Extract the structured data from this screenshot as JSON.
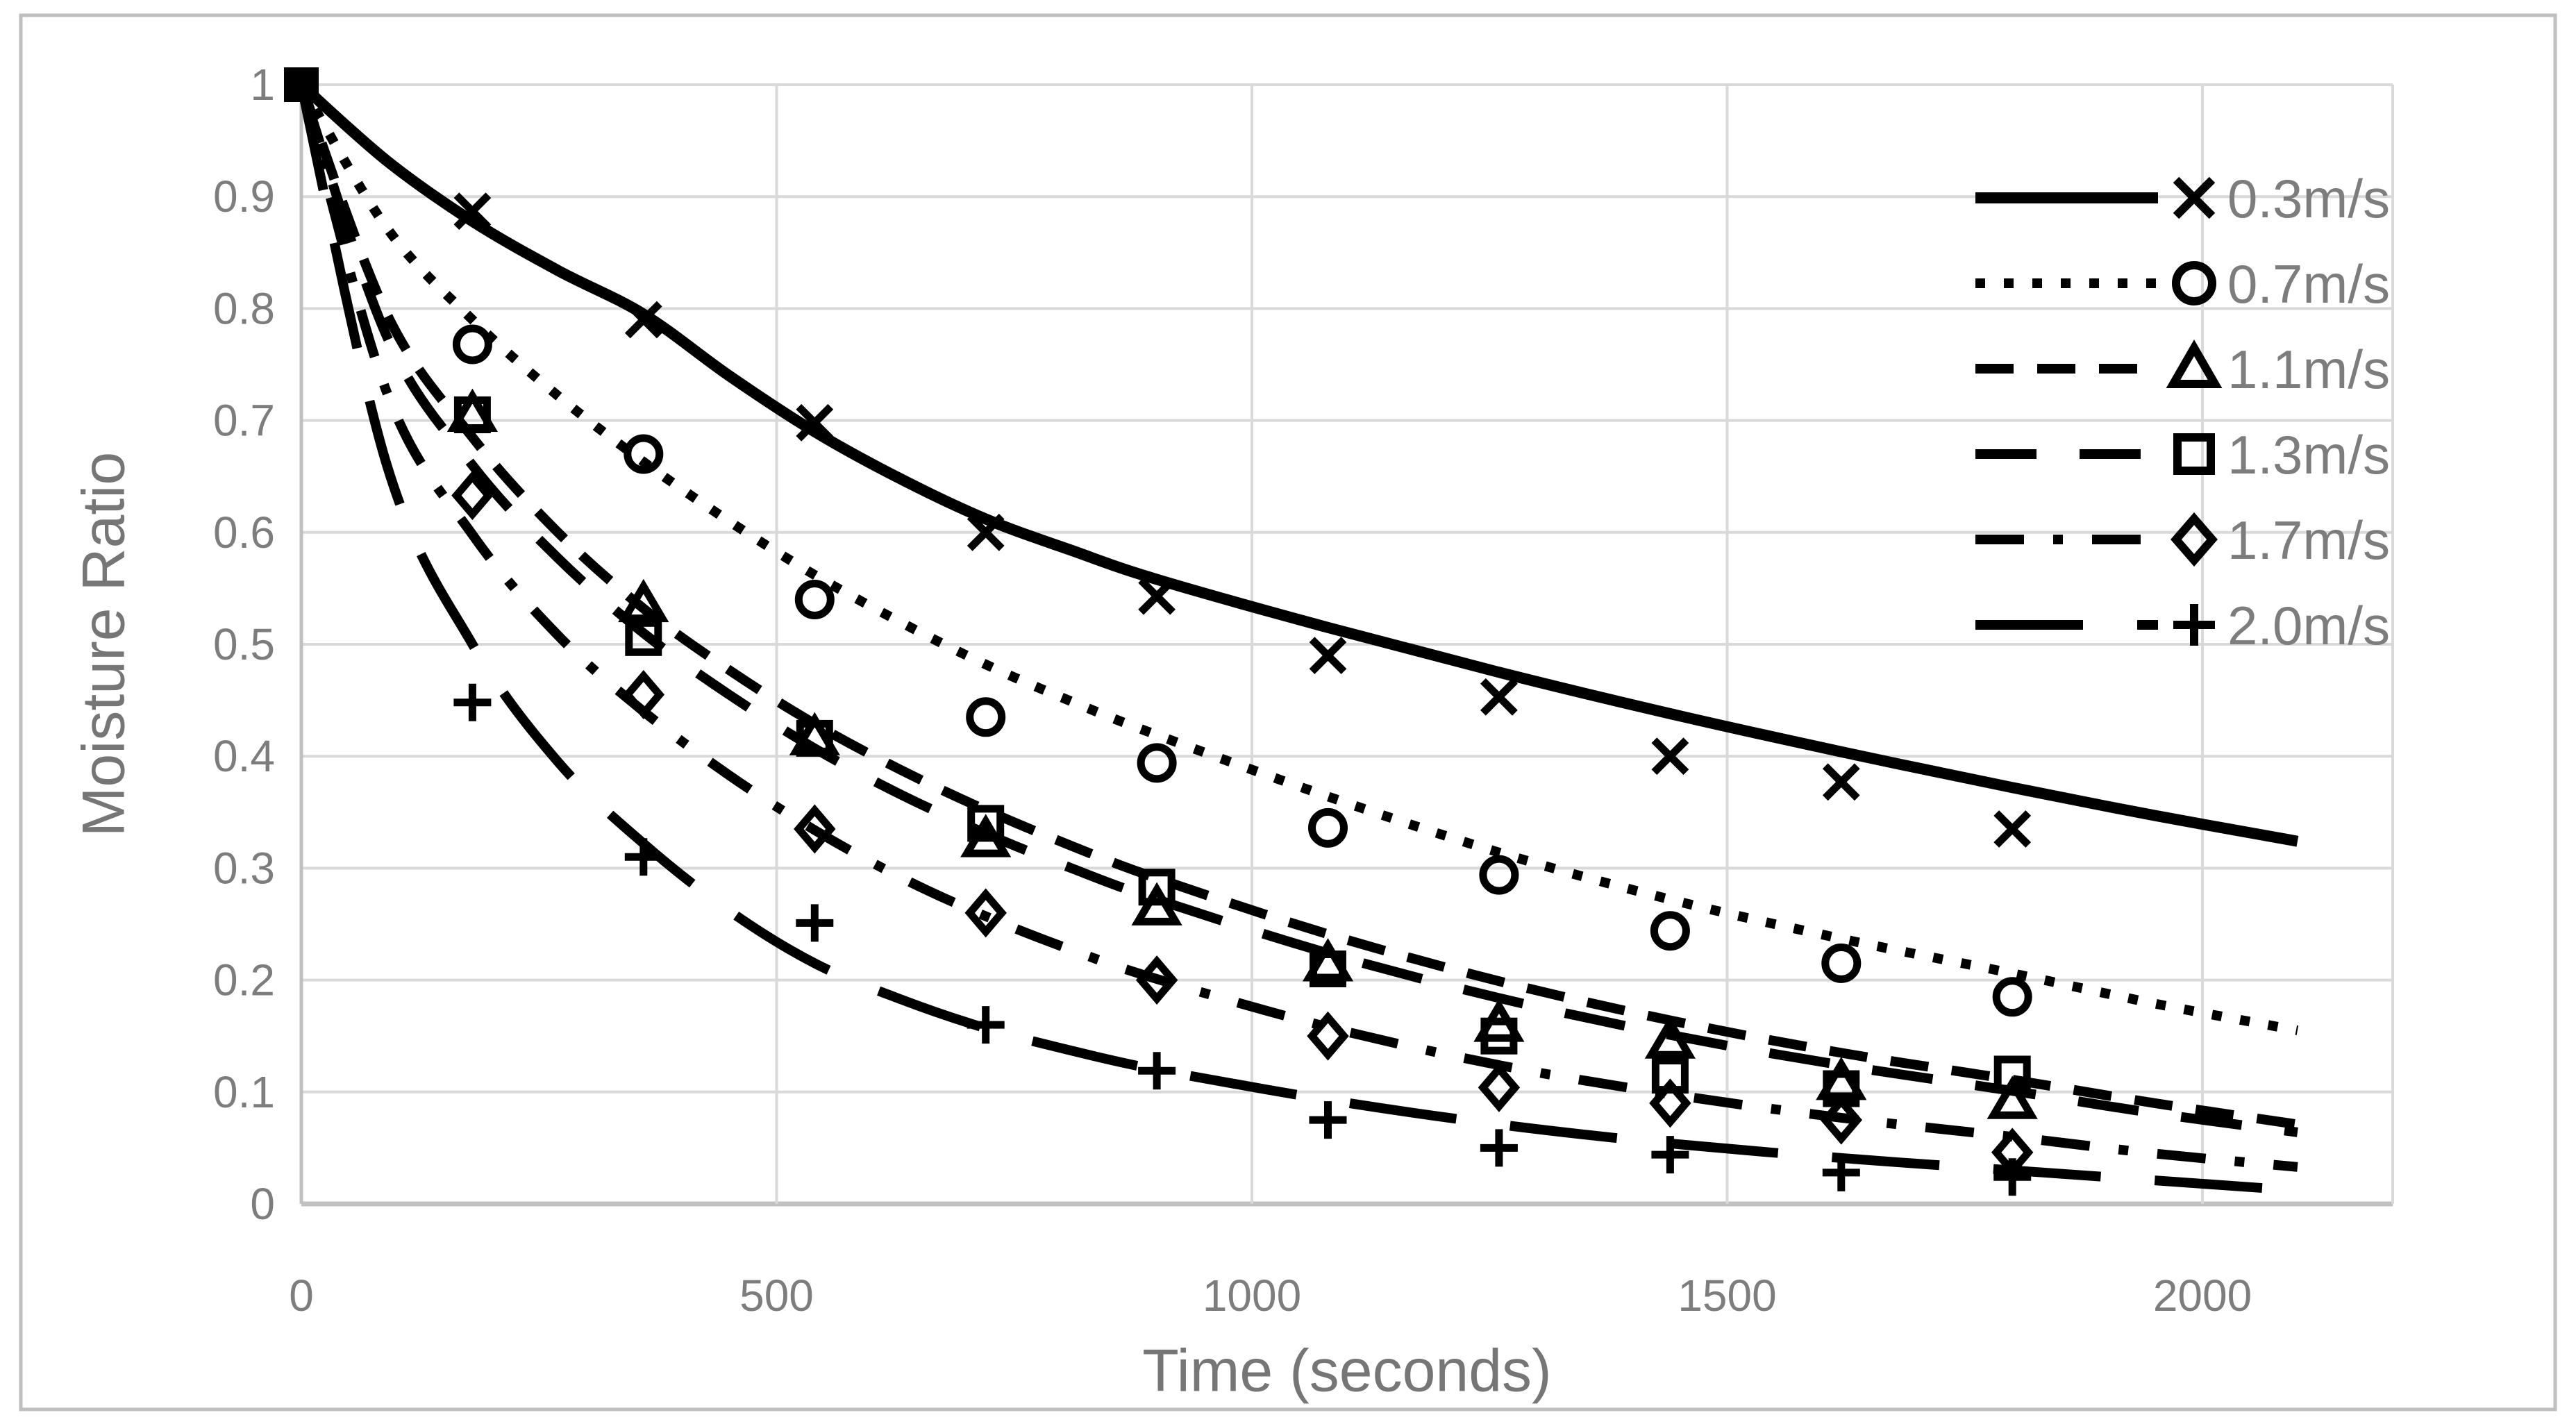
{
  "chart_data": {
    "type": "scatter",
    "title": "",
    "xlabel": "Time (seconds)",
    "ylabel": "Moisture Ratio",
    "xlim": [
      0,
      2200
    ],
    "ylim": [
      0,
      1
    ],
    "grid": true,
    "legend_position": "top-right-inside",
    "x_ticks": [
      {
        "value": 0,
        "label": "0"
      },
      {
        "value": 500,
        "label": "500"
      },
      {
        "value": 1000,
        "label": "1000"
      },
      {
        "value": 1500,
        "label": "1500"
      },
      {
        "value": 2000,
        "label": "2000"
      }
    ],
    "y_tick_labels": [
      "0",
      "0.1",
      "0.2",
      "0.3",
      "0.4",
      "0.5",
      "0.6",
      "0.7",
      "0.8",
      "0.9",
      "1"
    ],
    "origin_point": {
      "t": 0,
      "mr": 1.0,
      "marker": "filled-square",
      "note": "all series share the point (0, 1)"
    },
    "scatter_t": [
      180,
      360,
      540,
      720,
      900,
      1080,
      1260,
      1440,
      1620,
      1800
    ],
    "curve_t": [
      0,
      90,
      180,
      270,
      360,
      450,
      540,
      630,
      720,
      810,
      900,
      1080,
      1260,
      1440,
      1620,
      1800,
      1950,
      2100
    ],
    "series": [
      {
        "label": "0.3m/s",
        "marker": "x",
        "line_style": "solid",
        "scatter_mr": [
          0.887,
          0.79,
          0.698,
          0.6,
          0.543,
          0.49,
          0.453,
          0.4,
          0.377,
          0.335
        ],
        "curve_mr": [
          1.0,
          0.932,
          0.878,
          0.834,
          0.795,
          0.74,
          0.69,
          0.648,
          0.612,
          0.584,
          0.558,
          0.515,
          0.475,
          0.438,
          0.404,
          0.372,
          0.347,
          0.324
        ]
      },
      {
        "label": "0.7m/s",
        "marker": "circle",
        "line_style": "dotted",
        "scatter_mr": [
          0.768,
          0.67,
          0.54,
          0.435,
          0.394,
          0.336,
          0.294,
          0.244,
          0.215,
          0.185
        ],
        "curve_mr": [
          1.0,
          0.872,
          0.79,
          0.722,
          0.663,
          0.61,
          0.562,
          0.52,
          0.482,
          0.449,
          0.419,
          0.364,
          0.314,
          0.272,
          0.237,
          0.206,
          0.179,
          0.155
        ]
      },
      {
        "label": "1.1m/s",
        "marker": "triangle",
        "line_style": "short-dash",
        "scatter_mr": [
          0.705,
          0.535,
          0.416,
          0.325,
          0.264,
          0.214,
          0.16,
          0.145,
          0.108,
          0.091
        ],
        "curve_mr": [
          1.0,
          0.795,
          0.685,
          0.6,
          0.532,
          0.477,
          0.429,
          0.388,
          0.352,
          0.32,
          0.291,
          0.241,
          0.199,
          0.164,
          0.135,
          0.111,
          0.09,
          0.071
        ]
      },
      {
        "label": "1.3m/s",
        "marker": "square",
        "line_style": "medium-dash",
        "scatter_mr": [
          0.705,
          0.506,
          0.416,
          0.34,
          0.283,
          0.21,
          0.15,
          0.115,
          0.103,
          0.116
        ],
        "curve_mr": [
          1.0,
          0.775,
          0.66,
          0.577,
          0.51,
          0.455,
          0.407,
          0.366,
          0.331,
          0.3,
          0.272,
          0.224,
          0.184,
          0.151,
          0.124,
          0.101,
          0.081,
          0.064
        ]
      },
      {
        "label": "1.7m/s",
        "marker": "diamond",
        "line_style": "dash-dot",
        "scatter_mr": [
          0.633,
          0.455,
          0.335,
          0.26,
          0.2,
          0.15,
          0.104,
          0.09,
          0.075,
          0.046
        ],
        "curve_mr": [
          1.0,
          0.725,
          0.598,
          0.508,
          0.44,
          0.383,
          0.334,
          0.292,
          0.257,
          0.227,
          0.201,
          0.158,
          0.124,
          0.098,
          0.077,
          0.06,
          0.045,
          0.033
        ]
      },
      {
        "label": "2.0m/s",
        "marker": "plus",
        "line_style": "long-dash",
        "scatter_mr": [
          0.448,
          0.31,
          0.251,
          0.16,
          0.119,
          0.075,
          0.05,
          0.044,
          0.028,
          0.024
        ],
        "curve_mr": [
          1.0,
          0.66,
          0.5,
          0.395,
          0.322,
          0.262,
          0.215,
          0.183,
          0.157,
          0.137,
          0.12,
          0.093,
          0.071,
          0.054,
          0.041,
          0.03,
          0.021,
          0.012
        ]
      }
    ],
    "colors": {
      "series": "#000000",
      "tick_text": "#7d7d7d",
      "axis_title_text": "#767676",
      "gridline": "#d9d9d9",
      "axis_line": "#c0c0c0",
      "figure_border": "#bfbfbf",
      "background": "#ffffff"
    }
  }
}
